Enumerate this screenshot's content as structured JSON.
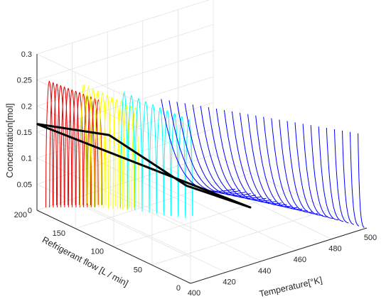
{
  "chart_data": {
    "type": "line-3d",
    "title": "",
    "axes": {
      "x": {
        "label": "Temperature[°K]",
        "range": [
          400,
          500
        ],
        "ticks": [
          400,
          420,
          440,
          460,
          480,
          500
        ]
      },
      "y": {
        "label": "Refrigerant flow [L / min]",
        "range": [
          0,
          200
        ],
        "ticks": [
          0,
          50,
          100,
          150,
          200
        ]
      },
      "z": {
        "label": "Concentration[mol]",
        "range": [
          0,
          0.3
        ],
        "ticks": [
          0,
          0.05,
          0.1,
          0.15,
          0.2,
          0.25,
          0.3
        ],
        "tick_labels": [
          "0",
          "0.05",
          "0.1",
          "0.15",
          "0.2",
          "0.25",
          "0.3"
        ]
      }
    },
    "grid": true,
    "box": true,
    "colors": {
      "red": "#e60000",
      "yellow": "#ffff00",
      "cyan": "#00ffff",
      "blue": "#0000ff",
      "black": "#000000"
    },
    "series": [
      {
        "color": "red",
        "count": 14,
        "x_range": [
          405,
          422
        ],
        "y_range": [
          200,
          175
        ],
        "z_peak": 0.24
      },
      {
        "color": "yellow",
        "count": 12,
        "x_range": [
          418,
          432
        ],
        "y_range": [
          185,
          150
        ],
        "z_peak": 0.23
      },
      {
        "color": "cyan",
        "count": 10,
        "x_range": [
          430,
          445
        ],
        "y_range": [
          160,
          110
        ],
        "z_peak": 0.22
      },
      {
        "color": "blue",
        "count": 26,
        "x_range": [
          440,
          495
        ],
        "y_range": [
          130,
          0
        ],
        "z_peak": 0.22
      }
    ],
    "trajectory": {
      "color": "black",
      "points": [
        {
          "x": 402,
          "y": 205,
          "z": 0.16
        },
        {
          "x": 430,
          "y": 175,
          "z": 0.13
        },
        {
          "x": 450,
          "y": 120,
          "z": 0.05
        },
        {
          "x": 460,
          "y": 60,
          "z": 0.04
        },
        {
          "x": 402,
          "y": 205,
          "z": 0.16
        }
      ]
    }
  }
}
